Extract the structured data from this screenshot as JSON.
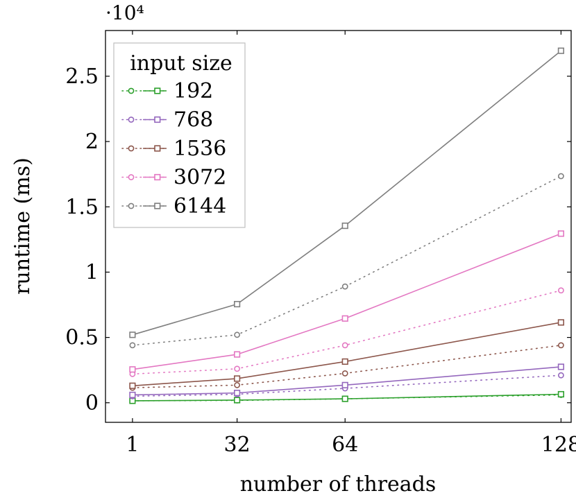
{
  "chart_data": {
    "type": "line",
    "title": "",
    "xlabel": "number of threads",
    "ylabel": "runtime (ms)",
    "y_multiplier": "·10⁴",
    "xlim": [
      -7,
      131
    ],
    "ylim": [
      -1500,
      28500
    ],
    "x_ticks": [
      1,
      32,
      64,
      128
    ],
    "x_tick_labels": [
      "1",
      "32",
      "64",
      "128"
    ],
    "y_ticks": [
      0,
      5000,
      10000,
      15000,
      20000,
      25000
    ],
    "y_tick_labels": [
      "0",
      "0.5",
      "1",
      "1.5",
      "2",
      "2.5"
    ],
    "grid": false,
    "legend_position": "top-left",
    "legend_title": "input size",
    "x": [
      1,
      32,
      64,
      128
    ],
    "groups": [
      {
        "name": "192",
        "color": "#2ca02c",
        "dotted_circles": [
          150,
          180,
          300,
          600
        ],
        "solid_squares": [
          150,
          200,
          300,
          650
        ]
      },
      {
        "name": "768",
        "color": "#9467bd",
        "dotted_circles": [
          500,
          650,
          1100,
          2100
        ],
        "solid_squares": [
          600,
          750,
          1350,
          2750
        ]
      },
      {
        "name": "1536",
        "color": "#8c564b",
        "dotted_circles": [
          1150,
          1350,
          2250,
          4400
        ],
        "solid_squares": [
          1300,
          1850,
          3150,
          6150
        ]
      },
      {
        "name": "3072",
        "color": "#e377c2",
        "dotted_circles": [
          2200,
          2600,
          4400,
          8600
        ],
        "solid_squares": [
          2550,
          3700,
          6450,
          12950
        ]
      },
      {
        "name": "6144",
        "color": "#7f7f7f",
        "dotted_circles": [
          4400,
          5200,
          8900,
          17350
        ],
        "solid_squares": [
          5200,
          7550,
          13550,
          26950
        ]
      }
    ]
  }
}
